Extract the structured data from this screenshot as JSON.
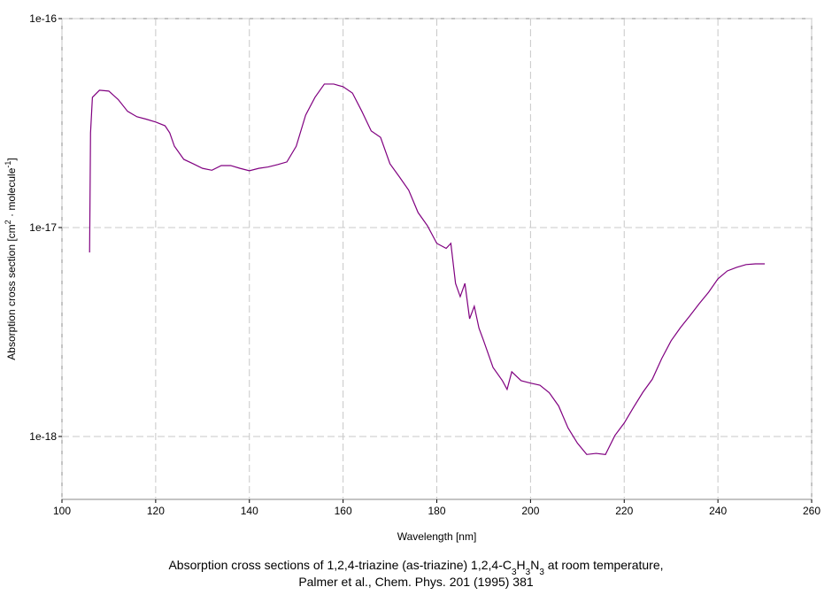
{
  "chart_data": {
    "type": "line",
    "log_y": true,
    "grid": true,
    "xlabel": "Wavelength [nm]",
    "ylabel": [
      "Absorption cross section [cm",
      "2",
      " · molecule",
      "-1",
      "]"
    ],
    "caption": [
      [
        "Absorption cross sections of 1,2,4-triazine (as-triazine) 1,2,4-C",
        "3",
        "H",
        "3",
        "N",
        "3",
        " at room temperature,"
      ],
      [
        "Palmer et al., Chem. Phys. 201 (1995) 381"
      ]
    ],
    "xlim": [
      100,
      260
    ],
    "xticks": [
      100,
      120,
      140,
      160,
      180,
      200,
      220,
      240,
      260
    ],
    "ylim": [
      5e-19,
      1e-16
    ],
    "yticks": [
      {
        "value": 1e-18,
        "label": "1e-18"
      },
      {
        "value": 1e-17,
        "label": "1e-17"
      },
      {
        "value": 1e-16,
        "label": "1e-16"
      }
    ],
    "series": [
      {
        "color": "#800080",
        "x": [
          105.9,
          106.1,
          106.5,
          108,
          110,
          112,
          114,
          116,
          118,
          120,
          122,
          123,
          124,
          126,
          128,
          130,
          132,
          134,
          136,
          138,
          140,
          142,
          144,
          146,
          148,
          150,
          152,
          154,
          156,
          158,
          160,
          162,
          164,
          166,
          168,
          170,
          172,
          174,
          176,
          178,
          180,
          182,
          183,
          184,
          185,
          186,
          187,
          188,
          189,
          190,
          192,
          194,
          195,
          196,
          198,
          200,
          202,
          204,
          206,
          208,
          210,
          212,
          214,
          216,
          218,
          220,
          222,
          224,
          226,
          228,
          230,
          232,
          234,
          236,
          238,
          240,
          242,
          244,
          246,
          248,
          250
        ],
        "values": [
          7.6e-18,
          2.84e-17,
          4.2e-17,
          4.54e-17,
          4.5e-17,
          4.1e-17,
          3.6e-17,
          3.39e-17,
          3.3e-17,
          3.2e-17,
          3.07e-17,
          2.84e-17,
          2.45e-17,
          2.12e-17,
          2.02e-17,
          1.92e-17,
          1.88e-17,
          1.98e-17,
          1.98e-17,
          1.92e-17,
          1.87e-17,
          1.92e-17,
          1.95e-17,
          2e-17,
          2.06e-17,
          2.45e-17,
          3.45e-17,
          4.2e-17,
          4.86e-17,
          4.86e-17,
          4.72e-17,
          4.4e-17,
          3.6e-17,
          2.9e-17,
          2.7e-17,
          2.02e-17,
          1.75e-17,
          1.51e-17,
          1.18e-17,
          1.02e-17,
          8.4e-18,
          7.95e-18,
          8.4e-18,
          5.4e-18,
          4.67e-18,
          5.4e-18,
          3.66e-18,
          4.2e-18,
          3.3e-18,
          2.87e-18,
          2.14e-18,
          1.85e-18,
          1.68e-18,
          2.04e-18,
          1.85e-18,
          1.8e-18,
          1.76e-18,
          1.62e-18,
          1.4e-18,
          1.1e-18,
          9.3e-19,
          8.2e-19,
          8.3e-19,
          8.2e-19,
          1.01e-18,
          1.16e-18,
          1.38e-18,
          1.63e-18,
          1.88e-18,
          2.36e-18,
          2.87e-18,
          3.32e-18,
          3.78e-18,
          4.32e-18,
          4.9e-18,
          5.68e-18,
          6.2e-18,
          6.45e-18,
          6.65e-18,
          6.7e-18,
          6.7e-18
        ]
      }
    ]
  }
}
